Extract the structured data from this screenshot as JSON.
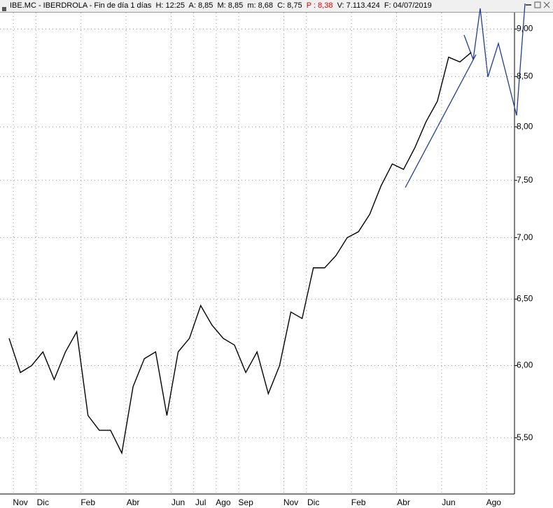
{
  "header": {
    "info": "IBE.MC - IBERDROLA - Fin de día 1 días  H: 12:25  A: 8,85  M: 8,85  m: 8,68  C: 8,75",
    "prev": "P : 8,38",
    "tail": "V: 7.113.424  F: 04/07/2019"
  },
  "chart_data": {
    "type": "line",
    "color": "#000000",
    "log_scale": true,
    "grid": true,
    "categories": [
      null,
      "Nov",
      null,
      "Dic",
      null,
      null,
      null,
      "Feb",
      null,
      null,
      null,
      "Abr",
      null,
      null,
      null,
      "Jun",
      null,
      "Jul",
      null,
      "Ago",
      null,
      "Sep",
      null,
      null,
      null,
      "Nov",
      null,
      "Dic",
      null,
      null,
      null,
      "Feb",
      null,
      null,
      null,
      "Abr",
      null,
      null,
      null,
      "Jun",
      null,
      null,
      null,
      "Ago"
    ],
    "values": [
      6.2,
      5.95,
      6.0,
      6.1,
      5.9,
      6.1,
      6.25,
      5.65,
      5.55,
      5.55,
      5.4,
      5.85,
      6.05,
      6.1,
      5.65,
      6.1,
      6.2,
      6.45,
      6.3,
      6.2,
      6.15,
      5.95,
      6.1,
      5.8,
      6.0,
      6.4,
      6.35,
      6.75,
      6.75,
      6.85,
      7.0,
      7.05,
      7.2,
      7.45,
      7.65,
      7.6,
      7.8,
      8.05,
      8.25,
      8.7,
      8.65,
      8.75,
      null,
      null
    ],
    "ylim": [
      5.14,
      9.18
    ],
    "yticks": [
      {
        "value": 5.5,
        "label": "5,50"
      },
      {
        "value": 6,
        "label": "6,00"
      },
      {
        "value": 6.5,
        "label": "6,50"
      },
      {
        "value": 7,
        "label": "7,00"
      },
      {
        "value": 7.5,
        "label": "7,50"
      },
      {
        "value": 8,
        "label": "8,00"
      },
      {
        "value": 8.5,
        "label": "8,50"
      },
      {
        "value": 9,
        "label": "9,00"
      }
    ]
  }
}
